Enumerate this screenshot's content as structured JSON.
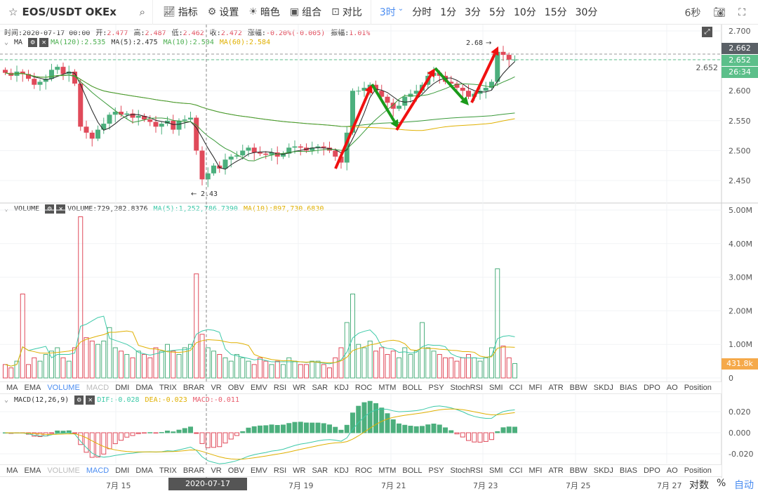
{
  "toolbar": {
    "symbol": "EOS/USDT OKEx",
    "buttons": [
      {
        "icon": "indicator-icon",
        "label": "指标"
      },
      {
        "icon": "gear-icon",
        "label": "设置"
      },
      {
        "icon": "sun-icon",
        "label": "暗色"
      },
      {
        "icon": "layout-icon",
        "label": "组合"
      },
      {
        "icon": "compare-icon",
        "label": "对比"
      }
    ],
    "periods": [
      "3时",
      "分时",
      "1分",
      "3分",
      "5分",
      "10分",
      "15分",
      "30分"
    ],
    "active_period": "3时",
    "countdown": "6秒"
  },
  "info": {
    "time_label": "时间:",
    "time": "2020-07-17 00:00",
    "open_label": "开:",
    "open": "2.477",
    "high_label": "高:",
    "high": "2.487",
    "low_label": "低:",
    "low": "2.462",
    "close_label": "收:",
    "close": "2.472",
    "change_label": "涨幅:",
    "change": "-0.20%(-0.005)",
    "amp_label": "振幅:",
    "amp": "1.01%"
  },
  "ma_legend": {
    "name": "MA",
    "items": [
      {
        "text": "MA(120):2.535",
        "color": "#4caf50"
      },
      {
        "text": "MA(5):2.475",
        "color": "#333333"
      },
      {
        "text": "MA(10):2.504",
        "color": "#4caf50"
      },
      {
        "text": "MA(60):2.584",
        "color": "#e0b000"
      }
    ]
  },
  "vol_legend": {
    "name": "VOLUME",
    "items": [
      {
        "text": "VOLUME:729,282.8376",
        "color": "#333333"
      },
      {
        "text": "MA(5):1,252,786.7390",
        "color": "#3cc9a8"
      },
      {
        "text": "MA(10):897,730.6830",
        "color": "#e0b000"
      }
    ]
  },
  "macd_legend": {
    "name": "MACD(12,26,9)",
    "items": [
      {
        "text": "DIF:-0.028",
        "color": "#3cc9a8"
      },
      {
        "text": "DEA:-0.023",
        "color": "#e0b000"
      },
      {
        "text": "MACD:-0.011",
        "color": "#e85a6a"
      }
    ]
  },
  "indicator_tabs": [
    "MA",
    "EMA",
    "VOLUME",
    "MACD",
    "DMI",
    "DMA",
    "TRIX",
    "BRAR",
    "VR",
    "OBV",
    "EMV",
    "RSI",
    "WR",
    "SAR",
    "KDJ",
    "ROC",
    "MTM",
    "BOLL",
    "PSY",
    "StochRSI",
    "SMI",
    "CCI",
    "MFI",
    "ATR",
    "BBW",
    "SKDJ",
    "BIAS",
    "DPO",
    "AO",
    "Position"
  ],
  "bottom": {
    "dates": [
      "7月 15",
      "7月 19",
      "7月 21",
      "7月 23",
      "7月 25",
      "7月 27"
    ],
    "crosshair_date": "2020-07-17 00:00:00",
    "log": "对数",
    "pct": "%",
    "auto": "自动"
  },
  "colors": {
    "up": "#4caf7d",
    "down": "#e04a5a",
    "accent": "#4a8cf0",
    "last_price": "#5a6066",
    "current": "#5cbf8a",
    "vol_last": "#f5a94a"
  },
  "chart_data": [
    {
      "type": "candlestick",
      "title": "EOS/USDT",
      "y_ticks": [
        "2.700",
        "2.652",
        "2.600",
        "2.550",
        "2.500",
        "2.450"
      ],
      "ylim": [
        2.43,
        2.72
      ],
      "closes": [
        2.63,
        2.625,
        2.632,
        2.628,
        2.62,
        2.61,
        2.615,
        2.62,
        2.635,
        2.64,
        2.628,
        2.632,
        2.612,
        2.54,
        2.53,
        2.52,
        2.535,
        2.545,
        2.56,
        2.565,
        2.56,
        2.562,
        2.555,
        2.558,
        2.552,
        2.548,
        2.54,
        2.545,
        2.55,
        2.535,
        2.55,
        2.552,
        2.555,
        2.5,
        2.452,
        2.462,
        2.475,
        2.47,
        2.485,
        2.49,
        2.492,
        2.5,
        2.505,
        2.497,
        2.495,
        2.493,
        2.497,
        2.49,
        2.495,
        2.505,
        2.507,
        2.505,
        2.5,
        2.505,
        2.507,
        2.505,
        2.5,
        2.49,
        2.48,
        2.53,
        2.6,
        2.6,
        2.605,
        2.61,
        2.6,
        2.59,
        2.58,
        2.57,
        2.575,
        2.59,
        2.595,
        2.6,
        2.61,
        2.625,
        2.63,
        2.625,
        2.615,
        2.612,
        2.605,
        2.6,
        2.59,
        2.595,
        2.6,
        2.605,
        2.615,
        2.665,
        2.66,
        2.652,
        2.652
      ],
      "annotations": [
        "2.68",
        "2.43"
      ],
      "last_price": "2.662",
      "current_price": "2.652",
      "countdown": "26:34"
    },
    {
      "type": "bar",
      "name": "VOLUME",
      "y_ticks": [
        "5.00M",
        "4.00M",
        "3.00M",
        "2.00M",
        "1.00M",
        "0"
      ],
      "ylim": [
        0,
        5.2
      ],
      "unit": "M",
      "values": [
        0.4,
        0.3,
        0.5,
        2.5,
        0.4,
        0.6,
        0.5,
        0.7,
        0.8,
        0.9,
        0.6,
        0.5,
        0.9,
        4.8,
        1.2,
        1.1,
        1.0,
        1.1,
        1.5,
        0.9,
        0.8,
        0.7,
        0.6,
        0.8,
        0.7,
        0.6,
        0.9,
        0.8,
        1.0,
        0.8,
        0.7,
        0.9,
        1.0,
        3.1,
        1.3,
        0.9,
        0.8,
        0.7,
        0.6,
        0.5,
        0.7,
        0.6,
        0.5,
        0.4,
        0.6,
        0.5,
        0.4,
        0.5,
        0.4,
        0.6,
        0.5,
        0.4,
        0.4,
        0.5,
        0.5,
        0.4,
        0.3,
        0.6,
        0.9,
        1.65,
        2.5,
        1.0,
        0.9,
        1.1,
        0.8,
        0.9,
        0.7,
        0.8,
        0.6,
        0.9,
        0.7,
        0.8,
        1.65,
        0.9,
        0.8,
        0.7,
        0.6,
        0.6,
        0.5,
        0.6,
        0.7,
        0.6,
        0.5,
        0.6,
        0.9,
        3.25,
        0.95,
        0.6,
        0.43
      ],
      "last_value": "431.8k"
    },
    {
      "type": "macd",
      "name": "MACD(12,26,9)",
      "y_ticks": [
        "0.020",
        "0.000",
        "-0.020"
      ],
      "ylim": [
        -0.03,
        0.03
      ]
    }
  ]
}
